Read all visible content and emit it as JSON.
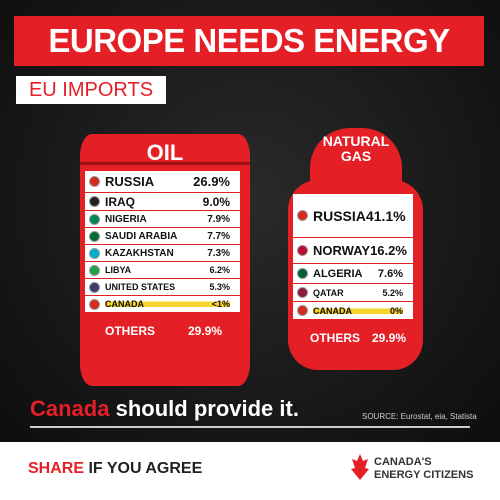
{
  "header": {
    "title": "EUROPE NEEDS ENERGY",
    "subtitle": "EU IMPORTS"
  },
  "oil": {
    "title": "OIL",
    "rows": [
      {
        "country": "RUSSIA",
        "share": "26.9%"
      },
      {
        "country": "IRAQ",
        "share": "9.0%"
      },
      {
        "country": "NIGERIA",
        "share": "7.9%"
      },
      {
        "country": "SAUDI ARABIA",
        "share": "7.7%"
      },
      {
        "country": "KAZAKHSTAN",
        "share": "7.3%"
      },
      {
        "country": "LIBYA",
        "share": "6.2%"
      },
      {
        "country": "UNITED STATES",
        "share": "5.3%"
      },
      {
        "country": "CANADA",
        "share": "<1%"
      }
    ],
    "others": {
      "label": "OTHERS",
      "share": "29.9%"
    }
  },
  "gas": {
    "title": "NATURAL GAS",
    "rows": [
      {
        "country": "RUSSIA",
        "share": "41.1%"
      },
      {
        "country": "NORWAY",
        "share": "16.2%"
      },
      {
        "country": "ALGERIA",
        "share": "7.6%"
      },
      {
        "country": "QATAR",
        "share": "5.2%"
      },
      {
        "country": "CANADA",
        "share": "0%"
      }
    ],
    "others": {
      "label": "OTHERS",
      "share": "29.9%"
    }
  },
  "tagline": {
    "highlight": "Canada",
    "rest": "should provide it."
  },
  "source": "SOURCE: Eurostat, eia, Statista",
  "footer": {
    "share": "SHARE",
    "rest": "IF YOU AGREE",
    "logo_line1": "CANADA'S",
    "logo_line2": "ENERGY CITIZENS"
  }
}
